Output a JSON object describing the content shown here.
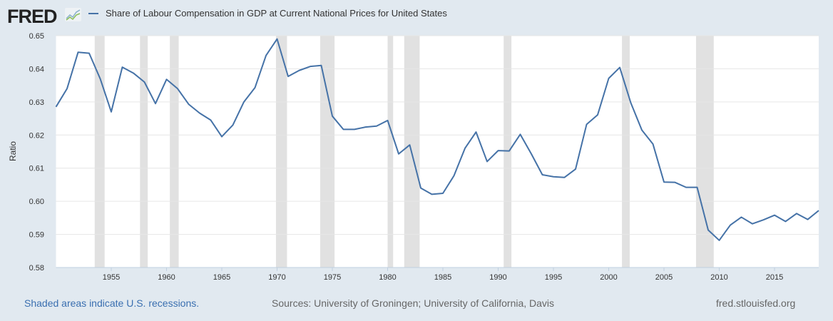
{
  "header": {
    "logo": "FRED",
    "logo_icon": "line-chart-icon"
  },
  "chart_data": {
    "type": "line",
    "title": "Share of Labour Compensation in GDP at Current National Prices for United States",
    "xlabel": "",
    "ylabel": "Ratio",
    "xlim": [
      1950,
      2019
    ],
    "ylim": [
      0.58,
      0.65
    ],
    "grid": true,
    "legend": "top-left",
    "yticks": [
      "0.58",
      "0.59",
      "0.60",
      "0.61",
      "0.62",
      "0.63",
      "0.64",
      "0.65"
    ],
    "xticks": [
      "1955",
      "1960",
      "1965",
      "1970",
      "1975",
      "1980",
      "1985",
      "1990",
      "1995",
      "2000",
      "2005",
      "2010",
      "2015"
    ],
    "series": [
      {
        "name": "Share of Labour Compensation in GDP at Current National Prices for United States",
        "color": "#4572a7",
        "x": [
          1950,
          1951,
          1952,
          1953,
          1954,
          1955,
          1956,
          1957,
          1958,
          1959,
          1960,
          1961,
          1962,
          1963,
          1964,
          1965,
          1966,
          1967,
          1968,
          1969,
          1970,
          1971,
          1972,
          1973,
          1974,
          1975,
          1976,
          1977,
          1978,
          1979,
          1980,
          1981,
          1982,
          1983,
          1984,
          1985,
          1986,
          1987,
          1988,
          1989,
          1990,
          1991,
          1992,
          1993,
          1994,
          1995,
          1996,
          1997,
          1998,
          1999,
          2000,
          2001,
          2002,
          2003,
          2004,
          2005,
          2006,
          2007,
          2008,
          2009,
          2010,
          2011,
          2012,
          2013,
          2014,
          2015,
          2016,
          2017,
          2018,
          2019
        ],
        "values": [
          0.6285,
          0.634,
          0.645,
          0.6447,
          0.637,
          0.627,
          0.6405,
          0.6387,
          0.636,
          0.6295,
          0.6368,
          0.634,
          0.6293,
          0.6266,
          0.6245,
          0.6195,
          0.623,
          0.63,
          0.6343,
          0.644,
          0.649,
          0.6377,
          0.6395,
          0.6407,
          0.641,
          0.6257,
          0.6217,
          0.6217,
          0.6224,
          0.6227,
          0.6244,
          0.6143,
          0.617,
          0.604,
          0.6021,
          0.6024,
          0.6077,
          0.616,
          0.6209,
          0.612,
          0.6153,
          0.6152,
          0.6202,
          0.6143,
          0.608,
          0.6074,
          0.6072,
          0.6097,
          0.6232,
          0.6261,
          0.6371,
          0.6404,
          0.6297,
          0.6215,
          0.6173,
          0.6058,
          0.6057,
          0.6042,
          0.6042,
          0.5913,
          0.5882,
          0.5928,
          0.5952,
          0.5932,
          0.5944,
          0.5958,
          0.5939,
          0.5963,
          0.5945,
          0.5972
        ]
      }
    ],
    "recessions": [
      [
        1953.5,
        1954.4
      ],
      [
        1957.6,
        1958.3
      ],
      [
        1960.3,
        1961.1
      ],
      [
        1969.9,
        1970.9
      ],
      [
        1973.9,
        1975.2
      ],
      [
        1980.0,
        1980.5
      ],
      [
        1981.5,
        1982.9
      ],
      [
        1990.5,
        1991.2
      ],
      [
        2001.2,
        2001.9
      ],
      [
        2007.9,
        2009.5
      ]
    ],
    "recession_color": "#e1e1e1"
  },
  "footer": {
    "note": "Shaded areas indicate U.S. recessions.",
    "sources": "Sources: University of Groningen; University of California, Davis",
    "site": "fred.stlouisfed.org"
  }
}
